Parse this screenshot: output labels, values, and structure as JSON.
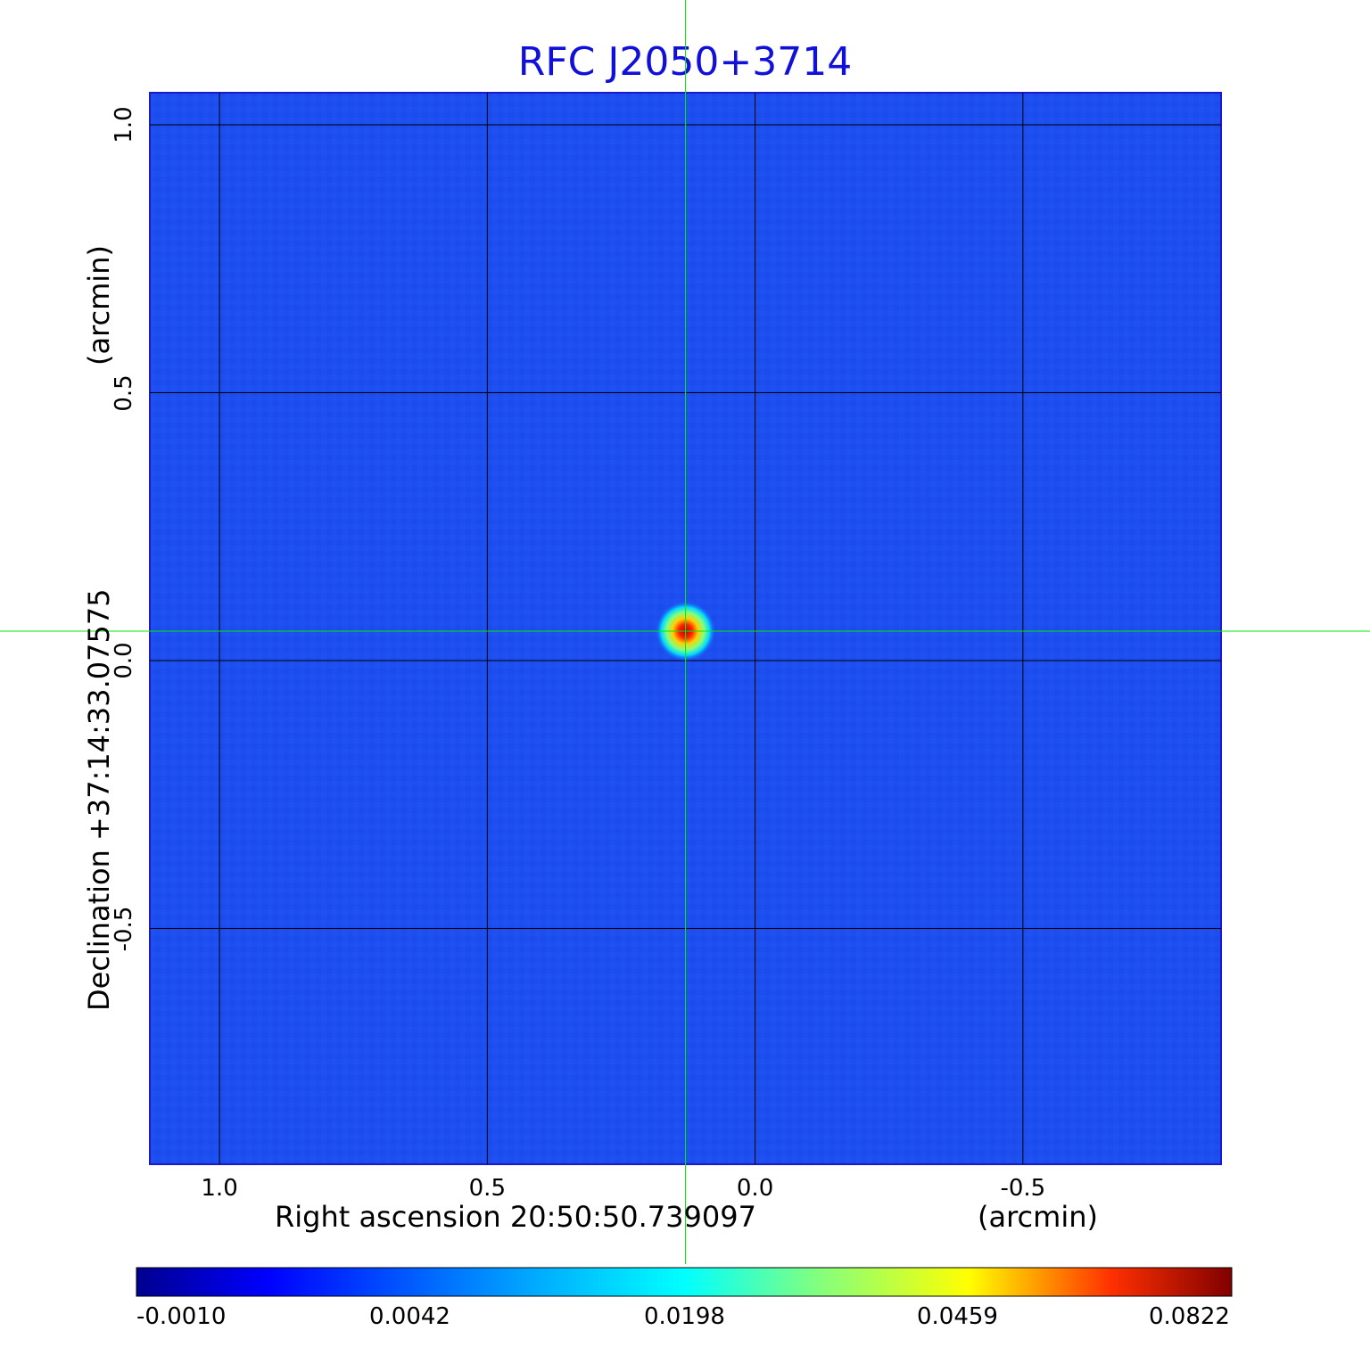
{
  "chart_data": {
    "type": "heatmap",
    "title": "RFC J2050+3714",
    "xlabel": "Right ascension  20:50:50.739097",
    "xunit": "(arcmin)",
    "ylabel": "Declination  +37:14:33.07575",
    "yunit": "(arcmin)",
    "x_ticks": [
      "1.0",
      "0.5",
      "0.0",
      "-0.5"
    ],
    "x_tick_values": [
      1.0,
      0.5,
      0.0,
      -0.5
    ],
    "y_ticks": [
      "1.0",
      "0.5",
      "0.0",
      "-0.5"
    ],
    "y_tick_values": [
      1.0,
      0.5,
      0.0,
      -0.5
    ],
    "xlim": [
      1.13,
      -0.87
    ],
    "ylim": [
      -0.94,
      1.06
    ],
    "grid": true,
    "colormap": "jet",
    "colorbar": {
      "ticks": [
        "-0.0010",
        "0.0042",
        "0.0198",
        "0.0459",
        "0.0822"
      ],
      "values": [
        -0.001,
        0.0042,
        0.0198,
        0.0459,
        0.0822
      ]
    },
    "peak": {
      "x": 0.13,
      "y": 0.055,
      "value": 0.0822
    },
    "crosshair": {
      "x": 0.13,
      "y": 0.055
    }
  },
  "colors": {
    "title": "#1010d8",
    "background_map": "#1d4ff0",
    "crosshair": "#00ee00",
    "grid": "#000000"
  }
}
